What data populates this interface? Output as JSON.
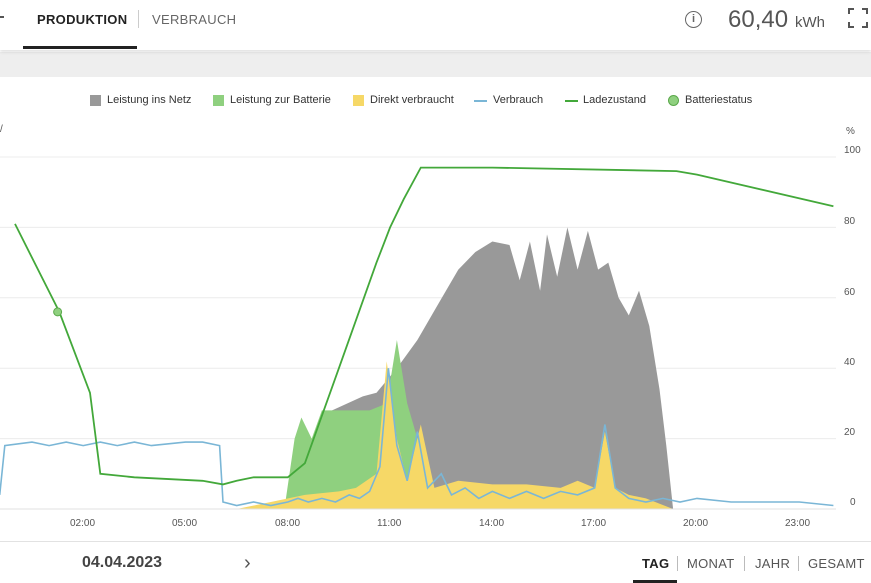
{
  "tabs": {
    "produktion": "PRODUKTION",
    "verbrauch": "VERBRAUCH"
  },
  "header": {
    "total_value": "60,40",
    "total_unit": "kWh"
  },
  "legend": {
    "items": [
      {
        "label": "Leistung ins Netz",
        "color": "#999999"
      },
      {
        "label": "Leistung zur Batterie",
        "color": "#8fd07f"
      },
      {
        "label": "Direkt verbraucht",
        "color": "#f6d867"
      },
      {
        "label": "Verbrauch",
        "color": "#7ab6d6"
      },
      {
        "label": "Ladezustand",
        "color": "#43a83a"
      },
      {
        "label": "Batteriestatus",
        "color": "#8fd07f"
      }
    ]
  },
  "axis": {
    "left_unit": "/",
    "right_unit": "%"
  },
  "chart_data": {
    "type": "area",
    "x_ticks": [
      "02:00",
      "05:00",
      "08:00",
      "11:00",
      "14:00",
      "17:00",
      "20:00",
      "23:00"
    ],
    "y_right_ticks": [
      "100",
      "80",
      "60",
      "40",
      "20",
      "0"
    ],
    "y_right_range": [
      0,
      100
    ],
    "x_range_hours": [
      -0.45,
      24
    ],
    "series": [
      {
        "name": "Ladezustand",
        "type": "line",
        "points": [
          [
            0.0,
            81
          ],
          [
            1.3,
            56
          ],
          [
            2.2,
            33
          ],
          [
            2.5,
            10
          ],
          [
            3.5,
            9
          ],
          [
            5.5,
            8
          ],
          [
            6.1,
            7
          ],
          [
            6.5,
            8
          ],
          [
            7.0,
            9
          ],
          [
            8.0,
            9
          ],
          [
            8.5,
            13
          ],
          [
            9.5,
            40
          ],
          [
            10.6,
            70
          ],
          [
            11.0,
            80
          ],
          [
            11.4,
            88
          ],
          [
            11.9,
            97
          ],
          [
            14.0,
            97
          ],
          [
            19.4,
            96
          ],
          [
            20.0,
            95
          ],
          [
            24,
            86
          ]
        ]
      },
      {
        "name": "Batteriestatus",
        "type": "point",
        "points": [
          [
            1.25,
            56
          ]
        ]
      },
      {
        "name": "Leistung ins Netz",
        "type": "area",
        "points": [
          [
            8.8,
            0
          ],
          [
            9.3,
            28
          ],
          [
            10.2,
            32
          ],
          [
            10.6,
            33
          ],
          [
            11.2,
            40
          ],
          [
            11.8,
            48
          ],
          [
            12.4,
            58
          ],
          [
            13.0,
            68
          ],
          [
            13.5,
            73
          ],
          [
            14.0,
            76
          ],
          [
            14.5,
            75
          ],
          [
            14.8,
            65
          ],
          [
            15.1,
            76
          ],
          [
            15.4,
            62
          ],
          [
            15.6,
            78
          ],
          [
            15.9,
            66
          ],
          [
            16.2,
            80
          ],
          [
            16.5,
            68
          ],
          [
            16.8,
            79
          ],
          [
            17.1,
            68
          ],
          [
            17.4,
            70
          ],
          [
            17.7,
            60
          ],
          [
            18.0,
            55
          ],
          [
            18.3,
            62
          ],
          [
            18.6,
            52
          ],
          [
            18.9,
            34
          ],
          [
            19.1,
            18
          ],
          [
            19.3,
            0
          ]
        ]
      },
      {
        "name": "Leistung zur Batterie",
        "type": "area",
        "points": [
          [
            7.9,
            0
          ],
          [
            8.2,
            20
          ],
          [
            8.4,
            26
          ],
          [
            8.7,
            20
          ],
          [
            9.0,
            28
          ],
          [
            9.8,
            28
          ],
          [
            10.4,
            28
          ],
          [
            10.9,
            30
          ],
          [
            11.2,
            48
          ],
          [
            11.5,
            30
          ],
          [
            11.8,
            20
          ],
          [
            12.1,
            8
          ],
          [
            12.6,
            3
          ],
          [
            13.0,
            2
          ]
        ]
      },
      {
        "name": "Direkt verbraucht",
        "type": "area",
        "points": [
          [
            6.5,
            0
          ],
          [
            7.5,
            2
          ],
          [
            8.5,
            4
          ],
          [
            9.5,
            5
          ],
          [
            10.0,
            6
          ],
          [
            10.6,
            10
          ],
          [
            10.9,
            42
          ],
          [
            11.2,
            20
          ],
          [
            11.5,
            8
          ],
          [
            11.9,
            24
          ],
          [
            12.3,
            6
          ],
          [
            13.0,
            8
          ],
          [
            14.0,
            7
          ],
          [
            15.0,
            7
          ],
          [
            16.0,
            6
          ],
          [
            16.5,
            8
          ],
          [
            17.0,
            6
          ],
          [
            17.3,
            22
          ],
          [
            17.6,
            6
          ],
          [
            18.0,
            4
          ],
          [
            18.5,
            3
          ],
          [
            19.3,
            0
          ]
        ]
      },
      {
        "name": "Verbrauch",
        "type": "line",
        "points": [
          [
            -0.45,
            4
          ],
          [
            -0.3,
            18
          ],
          [
            0.5,
            19
          ],
          [
            1.0,
            18
          ],
          [
            1.5,
            19
          ],
          [
            2.0,
            18
          ],
          [
            2.5,
            19
          ],
          [
            3.0,
            18
          ],
          [
            3.5,
            19
          ],
          [
            4.0,
            18
          ],
          [
            5.0,
            19
          ],
          [
            5.5,
            19
          ],
          [
            6.0,
            18
          ],
          [
            6.1,
            2
          ],
          [
            6.5,
            1
          ],
          [
            7.0,
            2
          ],
          [
            7.5,
            1
          ],
          [
            8.0,
            2
          ],
          [
            8.3,
            3
          ],
          [
            8.6,
            2
          ],
          [
            9.0,
            3
          ],
          [
            9.4,
            2
          ],
          [
            9.8,
            4
          ],
          [
            10.1,
            3
          ],
          [
            10.4,
            5
          ],
          [
            10.7,
            12
          ],
          [
            10.95,
            40
          ],
          [
            11.2,
            18
          ],
          [
            11.5,
            8
          ],
          [
            11.8,
            22
          ],
          [
            12.1,
            6
          ],
          [
            12.5,
            10
          ],
          [
            12.8,
            4
          ],
          [
            13.2,
            6
          ],
          [
            13.6,
            3
          ],
          [
            14.0,
            5
          ],
          [
            14.5,
            3
          ],
          [
            15.0,
            5
          ],
          [
            15.5,
            3
          ],
          [
            16.0,
            5
          ],
          [
            16.5,
            4
          ],
          [
            17.0,
            6
          ],
          [
            17.3,
            24
          ],
          [
            17.6,
            6
          ],
          [
            18.0,
            3
          ],
          [
            18.5,
            2
          ],
          [
            19.0,
            3
          ],
          [
            19.5,
            2
          ],
          [
            20.0,
            3
          ],
          [
            21.0,
            2
          ],
          [
            22.0,
            2
          ],
          [
            23.0,
            2
          ],
          [
            24.0,
            1
          ]
        ]
      }
    ]
  },
  "footer": {
    "date": "04.04.2023",
    "next": "›",
    "periods": [
      "TAG",
      "MONAT",
      "JAHR",
      "GESAMT"
    ]
  }
}
